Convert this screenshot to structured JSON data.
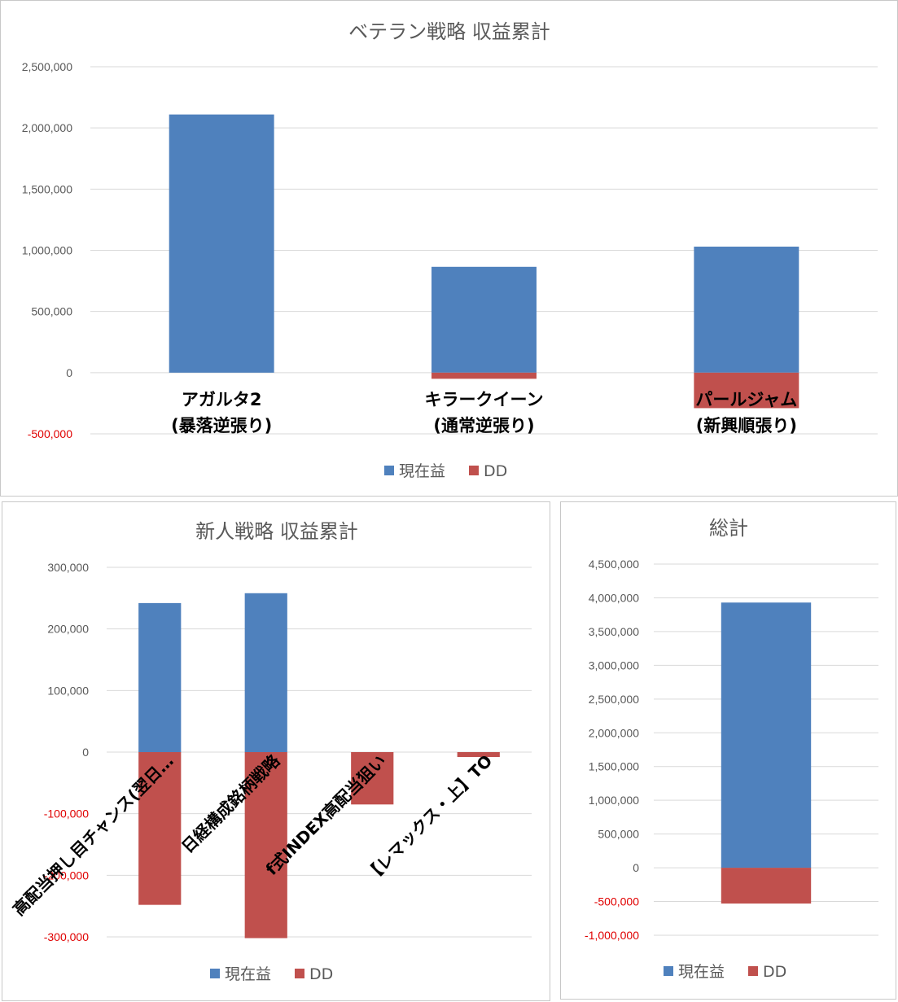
{
  "colors": {
    "current": "#4f81bd",
    "dd": "#c0504d",
    "grid": "#d9d9d9",
    "axis_text": "#595959",
    "negative_tick": "#e00000"
  },
  "chart_data": [
    {
      "type": "bar",
      "stacked": true,
      "title": "ベテラン戦略 収益累計",
      "categories": [
        [
          "アガルタ2",
          "(暴落逆張り)"
        ],
        [
          "キラークイーン",
          "(通常逆張り)"
        ],
        [
          "パールジャム",
          "(新興順張り)"
        ]
      ],
      "series": [
        {
          "name": "現在益",
          "values": [
            2110000,
            865000,
            1030000
          ]
        },
        {
          "name": "DD",
          "values": [
            0,
            -50000,
            -290000
          ]
        }
      ],
      "ylim": [
        -500000,
        2500000
      ],
      "yticks": [
        2500000,
        2000000,
        1500000,
        1000000,
        500000,
        0,
        -500000
      ],
      "ytick_labels": [
        "2,500,000",
        "2,000,000",
        "1,500,000",
        "1,000,000",
        "500,000",
        "0",
        "-500,000"
      ],
      "grid": true,
      "legend": "bottom"
    },
    {
      "type": "bar",
      "stacked": true,
      "title": "新人戦略 収益累計",
      "categories": [
        "高配当押し目チャンス(翌日…",
        "日経構成銘柄戦略",
        "f式INDEX高配当狙い",
        "【レマックス・上】TO"
      ],
      "series": [
        {
          "name": "現在益",
          "values": [
            242000,
            258000,
            0,
            0
          ]
        },
        {
          "name": "DD",
          "values": [
            -248000,
            -302000,
            -85000,
            -8000
          ]
        }
      ],
      "ylim": [
        -300000,
        300000
      ],
      "yticks": [
        300000,
        200000,
        100000,
        0,
        -100000,
        -200000,
        -300000
      ],
      "ytick_labels": [
        "300,000",
        "200,000",
        "100,000",
        "0",
        "-100,000",
        "-200,000",
        "-300,000"
      ],
      "grid": true,
      "legend": "bottom"
    },
    {
      "type": "bar",
      "stacked": true,
      "title": "総計",
      "categories": [
        ""
      ],
      "series": [
        {
          "name": "現在益",
          "values": [
            3930000
          ]
        },
        {
          "name": "DD",
          "values": [
            -530000
          ]
        }
      ],
      "ylim": [
        -1000000,
        4500000
      ],
      "yticks": [
        4500000,
        4000000,
        3500000,
        3000000,
        2500000,
        2000000,
        1500000,
        1000000,
        500000,
        0,
        -500000,
        -1000000
      ],
      "ytick_labels": [
        "4,500,000",
        "4,000,000",
        "3,500,000",
        "3,000,000",
        "2,500,000",
        "2,000,000",
        "1,500,000",
        "1,000,000",
        "500,000",
        "0",
        "-500,000",
        "-1,000,000"
      ],
      "grid": true,
      "legend": "bottom"
    }
  ]
}
